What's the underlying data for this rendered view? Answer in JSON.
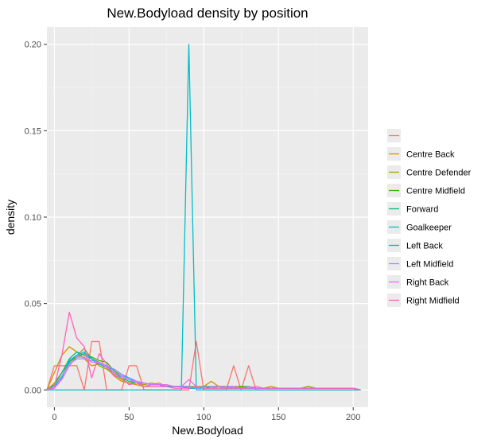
{
  "chart_data": {
    "type": "line",
    "title": "New.Bodyload density by position",
    "xlabel": "New.Bodyload",
    "ylabel": "density",
    "xlim": [
      -5,
      210
    ],
    "ylim": [
      -0.01,
      0.21
    ],
    "x_ticks": [
      0,
      50,
      100,
      150,
      200
    ],
    "x_tick_labels": [
      "0",
      "50",
      "100",
      "150",
      "200"
    ],
    "y_ticks": [
      0,
      0.05,
      0.1,
      0.15,
      0.2
    ],
    "y_tick_labels": [
      "0.00",
      "0.05",
      "0.10",
      "0.15",
      "0.20"
    ],
    "grid": true,
    "legend_position": "right",
    "series": [
      {
        "name": "",
        "color": "#F8766D",
        "x": [
          -5,
          0,
          5,
          10,
          15,
          20,
          25,
          30,
          35,
          40,
          45,
          50,
          55,
          60,
          65,
          70,
          75,
          80,
          85,
          90,
          95,
          100,
          105,
          110,
          115,
          120,
          125,
          130,
          135,
          140,
          145,
          150,
          155,
          160,
          165,
          170,
          175,
          180,
          185,
          190,
          195,
          200,
          205
        ],
        "y": [
          0,
          0.014,
          0.014,
          0.014,
          0.014,
          0,
          0.028,
          0.028,
          0,
          0,
          0,
          0.014,
          0.014,
          0,
          0,
          0,
          0,
          0,
          0,
          0,
          0.028,
          0,
          0,
          0,
          0,
          0.014,
          0,
          0.014,
          0,
          0,
          0,
          0,
          0,
          0,
          0,
          0,
          0,
          0,
          0,
          0,
          0,
          0,
          0
        ]
      },
      {
        "name": "Centre Back",
        "color": "#D89000",
        "x": [
          -5,
          0,
          5,
          10,
          15,
          20,
          25,
          30,
          35,
          40,
          45,
          50,
          55,
          60,
          65,
          70,
          75,
          80,
          85,
          90,
          95,
          100,
          105,
          110,
          115,
          120,
          125,
          130,
          135,
          140,
          145,
          150,
          155,
          160,
          165,
          170,
          175,
          180,
          185,
          190,
          195,
          200,
          205
        ],
        "y": [
          0,
          0.01,
          0.02,
          0.025,
          0.022,
          0.018,
          0.014,
          0.015,
          0.013,
          0.008,
          0.005,
          0.004,
          0.003,
          0.002,
          0.003,
          0.004,
          0.002,
          0.002,
          0.002,
          0.002,
          0.001,
          0.002,
          0.005,
          0.002,
          0.002,
          0.002,
          0.001,
          0.002,
          0.001,
          0.001,
          0.002,
          0.001,
          0.001,
          0.001,
          0.001,
          0.002,
          0.001,
          0.001,
          0.001,
          0.001,
          0.001,
          0.001,
          0
        ]
      },
      {
        "name": "Centre Defender",
        "color": "#A3A500",
        "x": [
          -5,
          0,
          5,
          10,
          15,
          20,
          25,
          30,
          35,
          40,
          45,
          50,
          55,
          60,
          65,
          70,
          75,
          80,
          85,
          90,
          95,
          100,
          105,
          110,
          115,
          120,
          125,
          130,
          135,
          140,
          145,
          150,
          155,
          160,
          165,
          170,
          175,
          180,
          185,
          190,
          195,
          200,
          205
        ],
        "y": [
          0,
          0.004,
          0.01,
          0.016,
          0.02,
          0.024,
          0.018,
          0.014,
          0.012,
          0.009,
          0.006,
          0.004,
          0.004,
          0.003,
          0.004,
          0.003,
          0.003,
          0.002,
          0.002,
          0.002,
          0.002,
          0.002,
          0.002,
          0.002,
          0.001,
          0.002,
          0.002,
          0.001,
          0.001,
          0.001,
          0.001,
          0.001,
          0.001,
          0.001,
          0.001,
          0.002,
          0.001,
          0.001,
          0.001,
          0.001,
          0.001,
          0.001,
          0
        ]
      },
      {
        "name": "Centre Midfield",
        "color": "#39B600",
        "x": [
          -5,
          0,
          5,
          10,
          15,
          20,
          25,
          30,
          35,
          40,
          45,
          50,
          55,
          60,
          65,
          70,
          75,
          80,
          85,
          90,
          95,
          100,
          105,
          110,
          115,
          120,
          125,
          130,
          135,
          140,
          145,
          150,
          155,
          160,
          165,
          170,
          175,
          180,
          185,
          190,
          195,
          200,
          205
        ],
        "y": [
          0,
          0.002,
          0.008,
          0.016,
          0.019,
          0.021,
          0.019,
          0.017,
          0.016,
          0.011,
          0.008,
          0.006,
          0.005,
          0.004,
          0.003,
          0.003,
          0.002,
          0.002,
          0.002,
          0.001,
          0.001,
          0.002,
          0.002,
          0.002,
          0.002,
          0.001,
          0.002,
          0.002,
          0.001,
          0.001,
          0.001,
          0.001,
          0.001,
          0.001,
          0.001,
          0.001,
          0.001,
          0.001,
          0.001,
          0.001,
          0.001,
          0.001,
          0
        ]
      },
      {
        "name": "Forward",
        "color": "#00BF7D",
        "x": [
          -5,
          0,
          5,
          10,
          15,
          20,
          25,
          30,
          35,
          40,
          45,
          50,
          55,
          60,
          65,
          70,
          75,
          80,
          85,
          90,
          95,
          100,
          105,
          110,
          115,
          120,
          125,
          130,
          135,
          140,
          145,
          150,
          155,
          160,
          165,
          170,
          175,
          180,
          185,
          190,
          195,
          200,
          205
        ],
        "y": [
          0,
          0.003,
          0.01,
          0.018,
          0.022,
          0.02,
          0.018,
          0.016,
          0.014,
          0.01,
          0.007,
          0.005,
          0.004,
          0.004,
          0.003,
          0.003,
          0.002,
          0.002,
          0.002,
          0.001,
          0.001,
          0.002,
          0.001,
          0.001,
          0.001,
          0.001,
          0.001,
          0.001,
          0.001,
          0.001,
          0.001,
          0.001,
          0.001,
          0.001,
          0.001,
          0.001,
          0.001,
          0.001,
          0.001,
          0.001,
          0.001,
          0.001,
          0
        ]
      },
      {
        "name": "Goalkeeper",
        "color": "#00BFC4",
        "x": [
          -5,
          0,
          5,
          10,
          15,
          20,
          25,
          30,
          35,
          40,
          45,
          50,
          55,
          60,
          65,
          70,
          75,
          80,
          85,
          90,
          95,
          100,
          105,
          110,
          115,
          120,
          125,
          130,
          135,
          140,
          145,
          150,
          155,
          160,
          165,
          170,
          175,
          180,
          185,
          190,
          195,
          200,
          205
        ],
        "y": [
          0,
          0,
          0,
          0,
          0,
          0,
          0,
          0,
          0,
          0,
          0,
          0,
          0,
          0,
          0,
          0,
          0,
          0,
          0,
          0.2,
          0,
          0,
          0,
          0,
          0,
          0,
          0,
          0,
          0,
          0,
          0,
          0,
          0,
          0,
          0,
          0,
          0,
          0,
          0,
          0,
          0,
          0,
          0
        ]
      },
      {
        "name": "Left Back",
        "color": "#00B0F6",
        "x": [
          -5,
          0,
          5,
          10,
          15,
          20,
          25,
          30,
          35,
          40,
          45,
          50,
          55,
          60,
          65,
          70,
          75,
          80,
          85,
          90,
          95,
          100,
          105,
          110,
          115,
          120,
          125,
          130,
          135,
          140,
          145,
          150,
          155,
          160,
          165,
          170,
          175,
          180,
          185,
          190,
          195,
          200,
          205
        ],
        "y": [
          0,
          0.002,
          0.007,
          0.017,
          0.02,
          0.022,
          0.018,
          0.015,
          0.013,
          0.012,
          0.009,
          0.007,
          0.005,
          0.004,
          0.003,
          0.003,
          0.002,
          0.002,
          0.002,
          0.001,
          0.001,
          0.001,
          0.001,
          0.002,
          0.001,
          0.001,
          0.001,
          0.001,
          0.001,
          0.001,
          0.001,
          0.001,
          0.001,
          0.001,
          0.001,
          0.001,
          0.001,
          0.001,
          0.001,
          0.001,
          0.001,
          0.001,
          0
        ]
      },
      {
        "name": "Left Midfield",
        "color": "#9590FF",
        "x": [
          -5,
          0,
          5,
          10,
          15,
          20,
          25,
          30,
          35,
          40,
          45,
          50,
          55,
          60,
          65,
          70,
          75,
          80,
          85,
          90,
          95,
          100,
          105,
          110,
          115,
          120,
          125,
          130,
          135,
          140,
          145,
          150,
          155,
          160,
          165,
          170,
          175,
          180,
          185,
          190,
          195,
          200,
          205
        ],
        "y": [
          0,
          0.001,
          0.008,
          0.015,
          0.018,
          0.018,
          0.017,
          0.016,
          0.014,
          0.012,
          0.009,
          0.006,
          0.004,
          0.004,
          0.003,
          0.003,
          0.003,
          0.002,
          0.002,
          0.002,
          0.001,
          0.002,
          0.002,
          0.002,
          0.002,
          0.002,
          0.001,
          0.002,
          0.001,
          0.001,
          0.001,
          0.001,
          0.001,
          0.001,
          0.001,
          0.001,
          0.001,
          0.001,
          0.001,
          0.001,
          0.001,
          0.001,
          0
        ]
      },
      {
        "name": "Right Back",
        "color": "#E76BF3",
        "x": [
          -5,
          0,
          5,
          10,
          15,
          20,
          25,
          30,
          35,
          40,
          45,
          50,
          55,
          60,
          65,
          70,
          75,
          80,
          85,
          90,
          95,
          100,
          105,
          110,
          115,
          120,
          125,
          130,
          135,
          140,
          145,
          150,
          155,
          160,
          165,
          170,
          175,
          180,
          185,
          190,
          195,
          200,
          205
        ],
        "y": [
          0,
          0.001,
          0.006,
          0.014,
          0.019,
          0.019,
          0.016,
          0.016,
          0.013,
          0.01,
          0.008,
          0.006,
          0.005,
          0.004,
          0.003,
          0.003,
          0.003,
          0.002,
          0.002,
          0.006,
          0.002,
          0.001,
          0.001,
          0.002,
          0.001,
          0.002,
          0.001,
          0.001,
          0.001,
          0.001,
          0.001,
          0.001,
          0.001,
          0.001,
          0.001,
          0.001,
          0.001,
          0.001,
          0.001,
          0.001,
          0.001,
          0.001,
          0
        ]
      },
      {
        "name": "Right Midfield",
        "color": "#FF62BC",
        "x": [
          -5,
          0,
          5,
          10,
          15,
          20,
          25,
          30,
          35,
          40,
          45,
          50,
          55,
          60,
          65,
          70,
          75,
          80,
          85,
          90,
          95,
          100,
          105,
          110,
          115,
          120,
          125,
          130,
          135,
          140,
          145,
          150,
          155,
          160,
          165,
          170,
          175,
          180,
          185,
          190,
          195,
          200,
          205
        ],
        "y": [
          0,
          0.002,
          0.02,
          0.045,
          0.03,
          0.025,
          0.007,
          0.021,
          0.015,
          0.008,
          0.007,
          0.003,
          0.004,
          0.002,
          0.002,
          0.002,
          0.002,
          0.001,
          0.001,
          0.001,
          0.002,
          0.001,
          0.001,
          0.001,
          0.001,
          0.001,
          0.001,
          0.001,
          0.002,
          0.001,
          0.001,
          0.001,
          0.001,
          0.001,
          0.001,
          0.001,
          0.001,
          0.001,
          0.001,
          0.001,
          0.001,
          0.001,
          0
        ]
      }
    ]
  }
}
